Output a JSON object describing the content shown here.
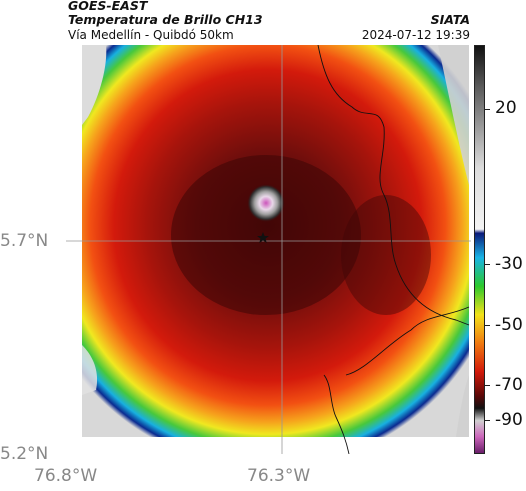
{
  "header": {
    "satellite": "GOES-EAST",
    "product": "Temperatura de Brillo CH13",
    "organization": "SIATA",
    "subtitle": "Vía Medellín - Quibdó 50km",
    "timestamp": "2024-07-12 19:39"
  },
  "map": {
    "lat_labels": [
      "5.7°N",
      "5.2°N"
    ],
    "lon_labels": [
      "76.8°W",
      "76.3°W"
    ],
    "center_marker": "star-marker",
    "colors": {
      "cold_core": "#cc66bb",
      "deep_red": "#5a0a0a",
      "red": "#c41a0a",
      "orange": "#f06a10",
      "yellow": "#f2e21a",
      "green": "#3cc83c",
      "cyan": "#19b4e6",
      "blue": "#0a2a90",
      "warm_gray": "#e0e0e0"
    }
  },
  "colorbar": {
    "labels": [
      "20",
      "-30",
      "-50",
      "-70",
      "-90"
    ]
  }
}
